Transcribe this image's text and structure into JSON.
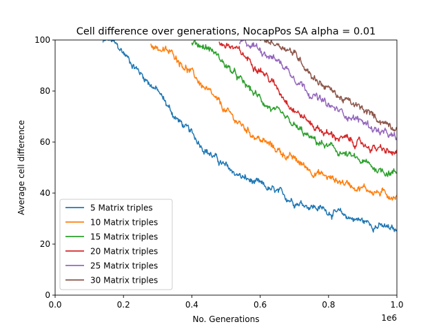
{
  "chart_data": {
    "type": "line",
    "title": "Cell difference over generations, NocapPos SA alpha = 0.01",
    "xlabel": "No. Generations",
    "ylabel": "Average cell difference",
    "x_offset_label": "1e6",
    "xlim": [
      0,
      1
    ],
    "ylim": [
      0,
      100
    ],
    "xticks": [
      0.0,
      0.2,
      0.4,
      0.6,
      0.8,
      1.0
    ],
    "xtick_labels": [
      "0.0",
      "0.2",
      "0.4",
      "0.6",
      "0.8",
      "1.0"
    ],
    "yticks": [
      0,
      20,
      40,
      60,
      80,
      100
    ],
    "ytick_labels": [
      "0",
      "20",
      "40",
      "60",
      "80",
      "100"
    ],
    "grid": false,
    "legend_position": "lower-left",
    "series": [
      {
        "name": "5 Matrix triples",
        "color": "#1f77b4",
        "x": [
          0.14,
          0.16,
          0.2,
          0.25,
          0.3,
          0.35,
          0.4,
          0.45,
          0.5,
          0.55,
          0.6,
          0.65,
          0.7,
          0.75,
          0.8,
          0.85,
          0.9,
          0.95,
          1.0
        ],
        "y": [
          99,
          100,
          95,
          87,
          80,
          70,
          63,
          56,
          50,
          46,
          43,
          40,
          37,
          35,
          33,
          31,
          29,
          27,
          25
        ]
      },
      {
        "name": "10 Matrix triples",
        "color": "#ff7f0e",
        "x": [
          0.28,
          0.3,
          0.35,
          0.4,
          0.45,
          0.5,
          0.55,
          0.6,
          0.65,
          0.7,
          0.75,
          0.8,
          0.85,
          0.9,
          0.95,
          1.0
        ],
        "y": [
          99,
          97,
          94,
          87,
          79,
          72,
          66,
          61,
          57,
          53,
          49,
          46,
          44,
          42,
          40,
          39
        ]
      },
      {
        "name": "15 Matrix triples",
        "color": "#2ca02c",
        "x": [
          0.4,
          0.43,
          0.46,
          0.5,
          0.55,
          0.6,
          0.65,
          0.7,
          0.75,
          0.8,
          0.85,
          0.9,
          0.95,
          1.0
        ],
        "y": [
          99,
          98,
          96,
          90,
          83,
          77,
          71,
          66,
          61,
          58,
          55,
          52,
          49,
          48
        ]
      },
      {
        "name": "20 Matrix triples",
        "color": "#d62728",
        "x": [
          0.48,
          0.52,
          0.56,
          0.6,
          0.65,
          0.7,
          0.75,
          0.8,
          0.85,
          0.9,
          0.95,
          1.0
        ],
        "y": [
          99,
          97,
          93,
          89,
          81,
          73,
          67,
          63,
          61,
          59,
          57,
          55
        ]
      },
      {
        "name": "25 Matrix triples",
        "color": "#9467bd",
        "x": [
          0.54,
          0.58,
          0.62,
          0.66,
          0.7,
          0.75,
          0.8,
          0.85,
          0.9,
          0.95,
          1.0
        ],
        "y": [
          99,
          98,
          95,
          91,
          86,
          79,
          74,
          71,
          68,
          64,
          61
        ]
      },
      {
        "name": "30 Matrix triples",
        "color": "#8c564b",
        "x": [
          0.6,
          0.64,
          0.68,
          0.72,
          0.76,
          0.8,
          0.84,
          0.88,
          0.92,
          0.96,
          1.0
        ],
        "y": [
          100,
          99,
          97,
          92,
          85,
          81,
          77,
          74,
          71,
          68,
          66
        ]
      }
    ]
  }
}
